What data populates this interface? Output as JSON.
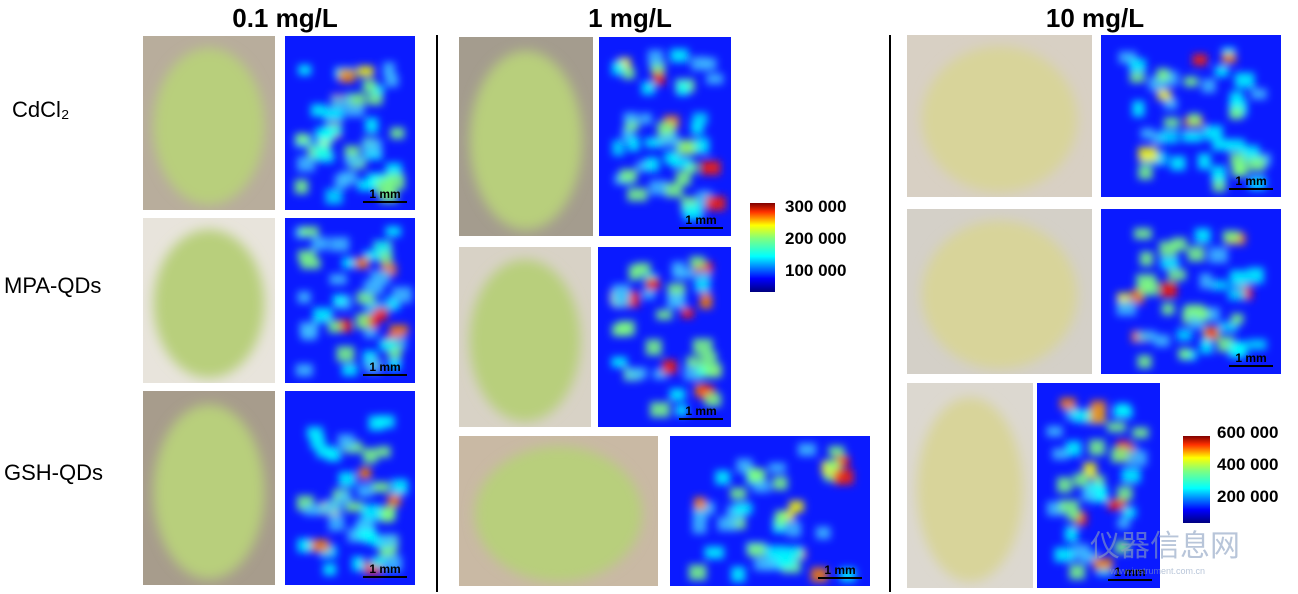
{
  "column_titles": [
    "0.1 mg/L",
    "1 mg/L",
    "10 mg/L"
  ],
  "row_labels": [
    "CdCl₂",
    "MPA-QDs",
    "GSH-QDs"
  ],
  "panels": [
    {
      "scale_bar": "1 mm"
    },
    {
      "scale_bar": "1 mm"
    },
    {
      "scale_bar": "1 mm"
    },
    {
      "scale_bar": "1 mm"
    },
    {
      "scale_bar": "1 mm"
    },
    {
      "scale_bar": "1 mm"
    },
    {
      "scale_bar": "1 mm"
    },
    {
      "scale_bar": "1 mm"
    },
    {
      "scale_bar": "1 mm"
    }
  ],
  "colorbars": [
    {
      "labels": [
        "300 000",
        "200 000",
        "100 000"
      ]
    },
    {
      "labels": [
        "600 000",
        "400 000",
        "200 000"
      ]
    }
  ],
  "watermark": {
    "name": "仪器信息网",
    "url": "www.instrument.com.cn"
  }
}
